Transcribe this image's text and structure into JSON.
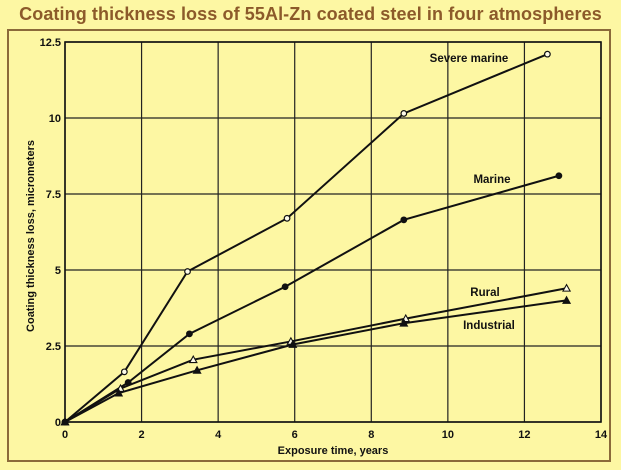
{
  "chart_data": {
    "type": "line",
    "title": "Coating thickness loss of 55Al-Zn coated steel in four atmospheres",
    "xlabel": "Exposure time, years",
    "ylabel": "Coating thickness loss, micrometers",
    "xlim": [
      0,
      14
    ],
    "ylim": [
      0,
      12.5
    ],
    "xticks": [
      0,
      2,
      4,
      6,
      8,
      10,
      12,
      14
    ],
    "xtick_labels": [
      "0",
      "2",
      "4",
      "6",
      "8",
      "10",
      "12",
      "14"
    ],
    "yticks": [
      0,
      2.5,
      5,
      7.5,
      10,
      12.5
    ],
    "ytick_labels": [
      "0",
      "2.5",
      "5",
      "7.5",
      "10",
      "12.5"
    ],
    "grid": true,
    "series": [
      {
        "name": "Severe marine",
        "marker": "open-circle",
        "x": [
          0,
          1.55,
          3.2,
          5.8,
          8.85,
          12.6
        ],
        "y": [
          0,
          1.65,
          4.95,
          6.7,
          10.15,
          12.1
        ]
      },
      {
        "name": "Marine",
        "marker": "filled-circle",
        "x": [
          0,
          1.65,
          3.25,
          5.75,
          8.85,
          12.9
        ],
        "y": [
          0,
          1.3,
          2.9,
          4.45,
          6.65,
          8.1
        ]
      },
      {
        "name": "Rural",
        "marker": "open-triangle",
        "x": [
          0,
          1.45,
          3.35,
          5.9,
          8.9,
          13.1
        ],
        "y": [
          0,
          1.1,
          2.05,
          2.65,
          3.4,
          4.4
        ]
      },
      {
        "name": "Industrial",
        "marker": "filled-triangle",
        "x": [
          0,
          1.4,
          3.45,
          5.95,
          8.85,
          13.1
        ],
        "y": [
          0,
          0.95,
          1.7,
          2.55,
          3.25,
          4.0
        ]
      }
    ]
  }
}
